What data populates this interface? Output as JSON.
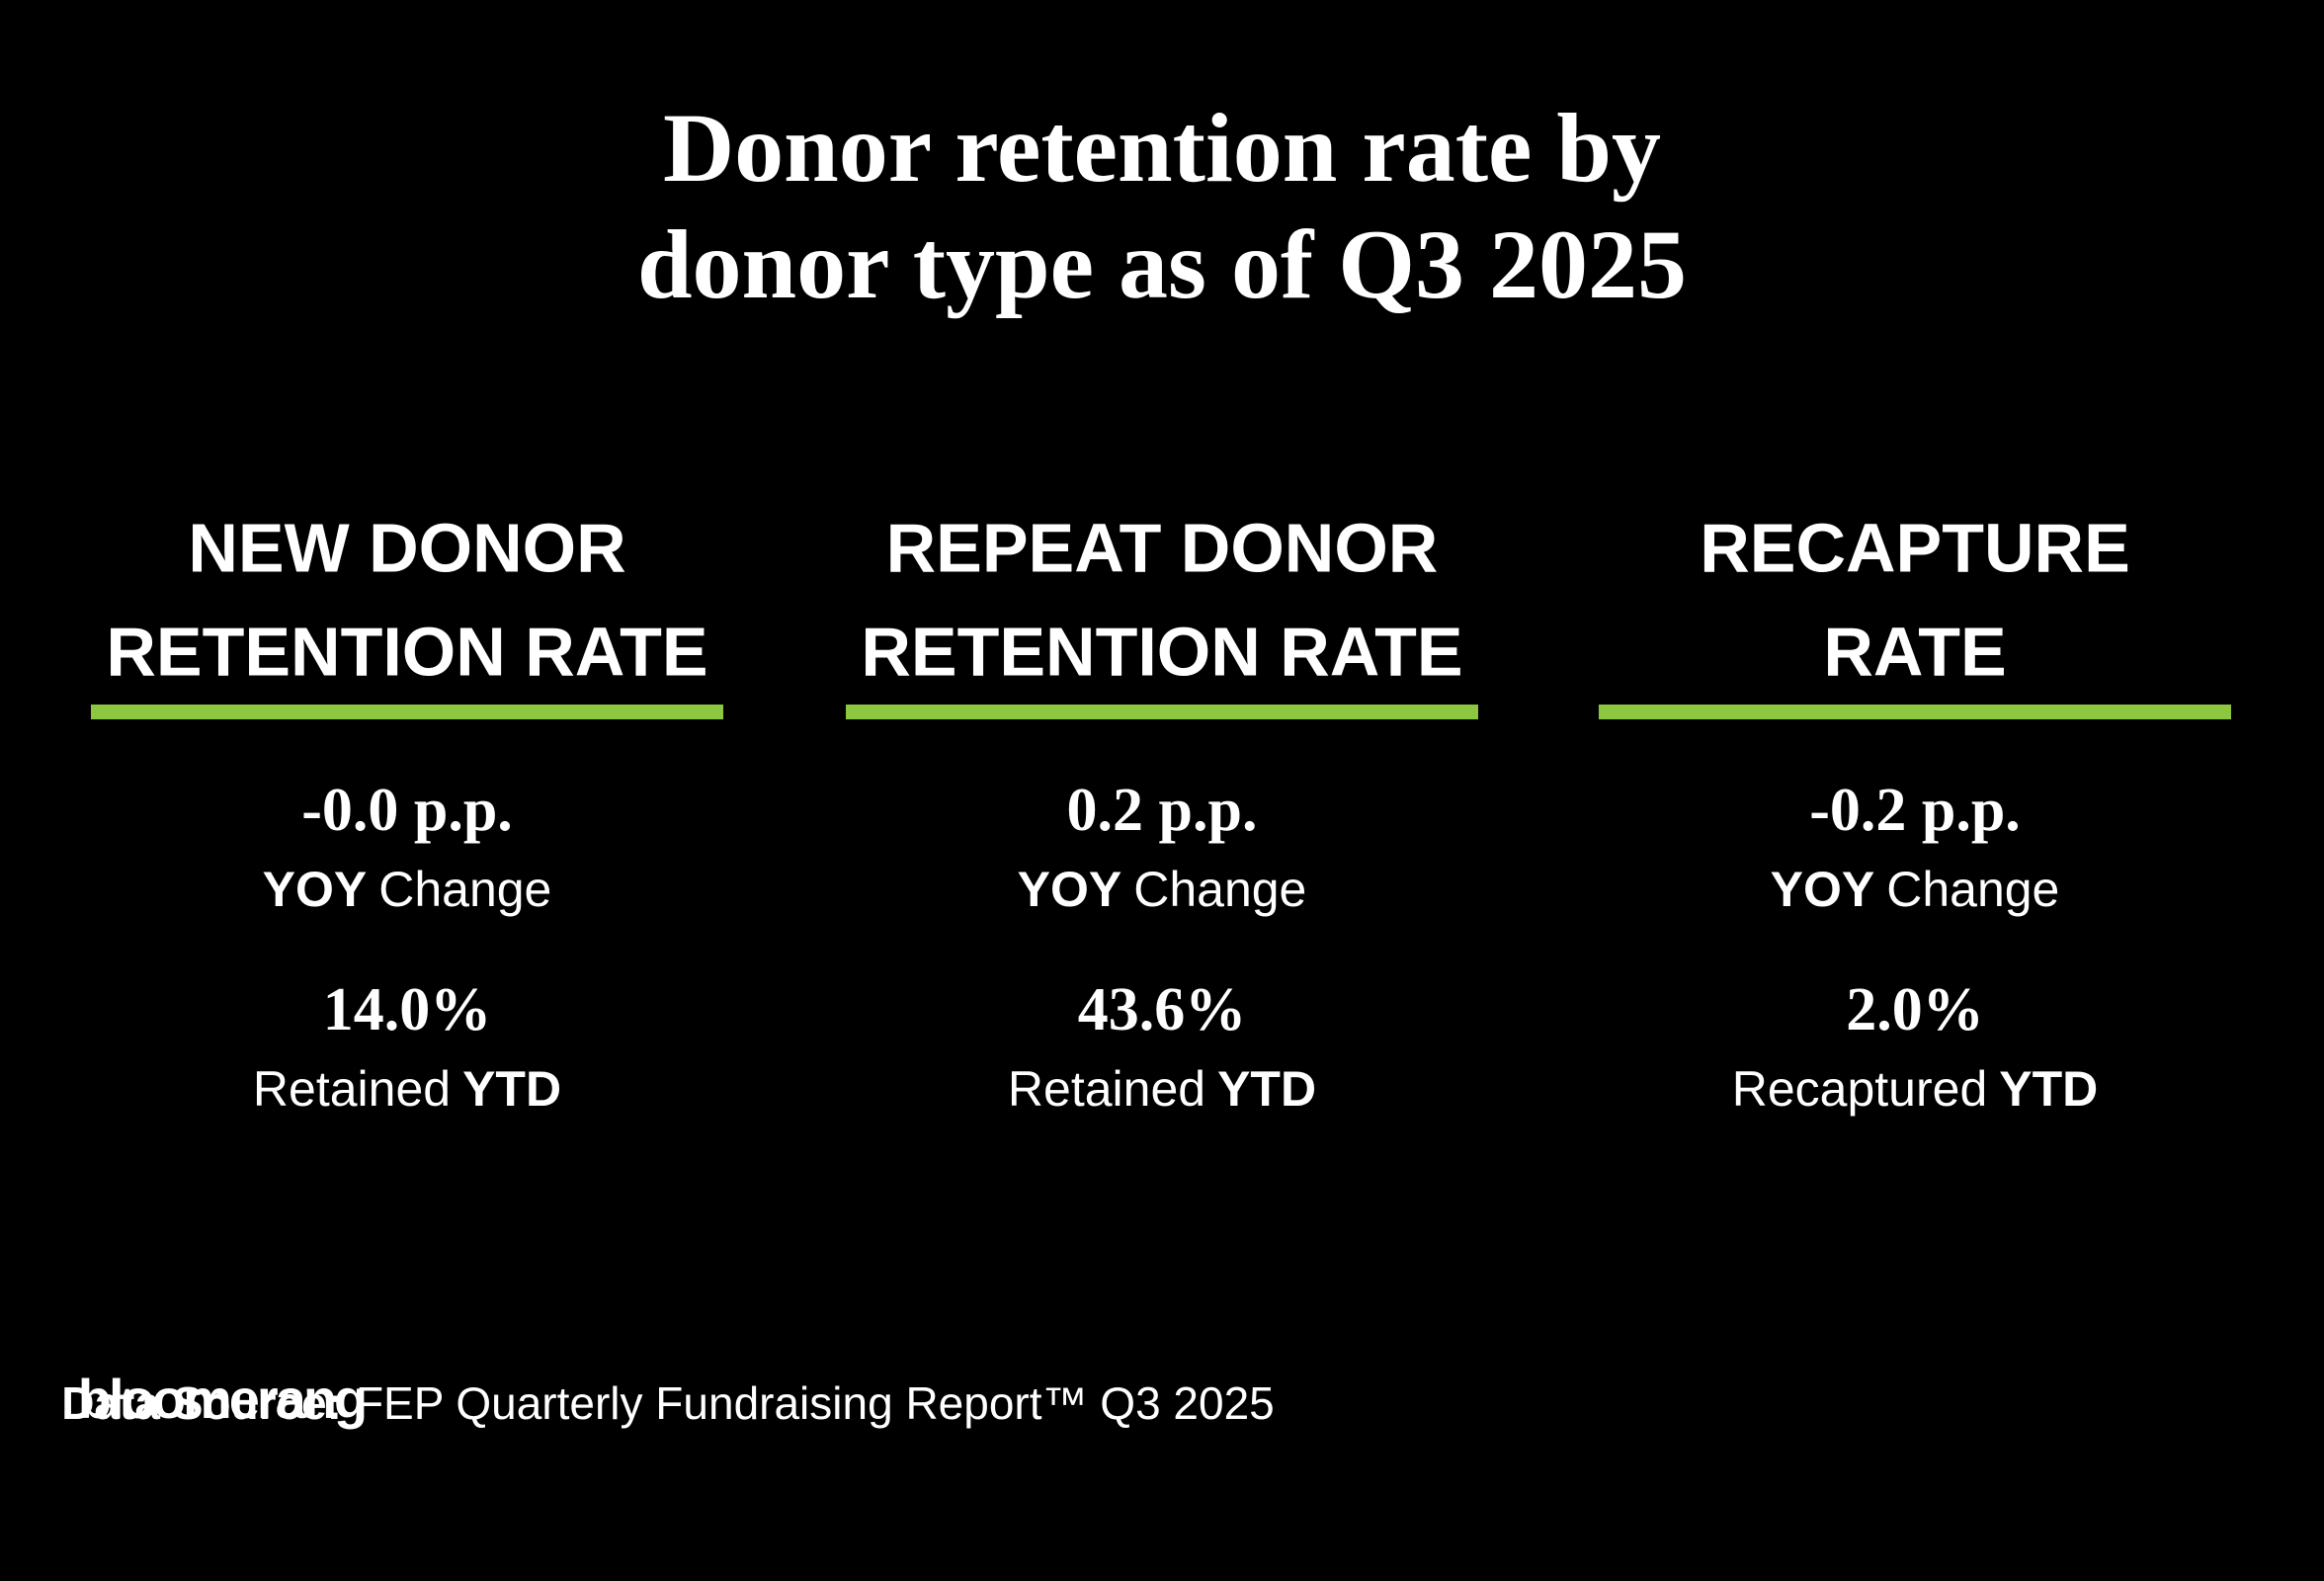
{
  "title": [
    "Donor retention rate by",
    "donor type as of Q3 2025"
  ],
  "columns": [
    {
      "heading": [
        "NEW DONOR",
        "RETENTION RATE"
      ],
      "change": "-0.0 p.p.",
      "change_label": {
        "bold": "YOY",
        "text": "Change"
      },
      "value": "14.0%",
      "value_label": {
        "text": "Retained",
        "bold": "YTD"
      }
    },
    {
      "heading": [
        "REPEAT DONOR",
        "RETENTION RATE"
      ],
      "change": "0.2 p.p.",
      "change_label": {
        "bold": "YOY",
        "text": "Change"
      },
      "value": "43.6%",
      "value_label": {
        "text": "Retained",
        "bold": "YTD"
      }
    },
    {
      "heading": [
        "RECAPTURE",
        "RATE"
      ],
      "change": "-0.2 p.p.",
      "change_label": {
        "bold": "YOY",
        "text": "Change"
      },
      "value": "2.0%",
      "value_label": {
        "text": "Recaptured",
        "bold": "YTD"
      }
    }
  ],
  "footer": {
    "logo": "bloomerang",
    "source_label": "Data Source:",
    "source": "FEP Quarterly Fundraising Report™ Q3 2025"
  }
}
